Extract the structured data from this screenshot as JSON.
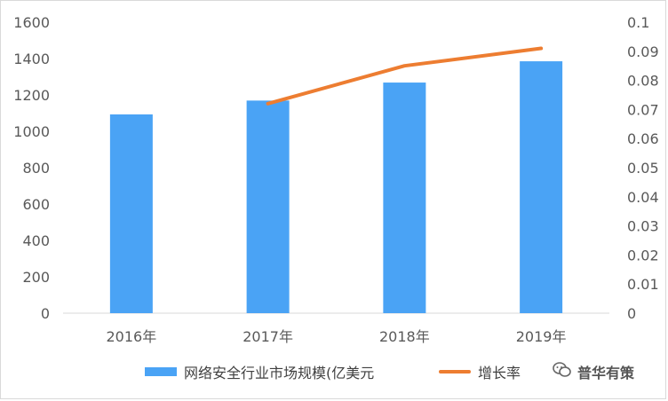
{
  "chart_data": {
    "type": "bar+line",
    "categories": [
      "2016年",
      "2017年",
      "2018年",
      "2019年"
    ],
    "series": [
      {
        "name": "网络安全行业市场规模(亿美元",
        "type": "bar",
        "axis": "left",
        "values": [
          1093,
          1169,
          1268,
          1385
        ],
        "color": "#4aa3f5"
      },
      {
        "name": "增长率",
        "type": "line",
        "axis": "right",
        "values": [
          null,
          0.072,
          0.085,
          0.091
        ],
        "color": "#ed7d31"
      }
    ],
    "yleft": {
      "min": 0,
      "max": 1600,
      "step": 200,
      "ticks": [
        "0",
        "200",
        "400",
        "600",
        "800",
        "1000",
        "1200",
        "1400",
        "1600"
      ]
    },
    "yright": {
      "min": 0,
      "max": 0.1,
      "step": 0.01,
      "ticks": [
        "0",
        "0.01",
        "0.02",
        "0.03",
        "0.04",
        "0.05",
        "0.06",
        "0.07",
        "0.08",
        "0.09",
        "0.1"
      ]
    },
    "grid": false,
    "legend_position": "bottom"
  },
  "watermark": {
    "text": "普华有策",
    "icon": "wechat-icon"
  }
}
